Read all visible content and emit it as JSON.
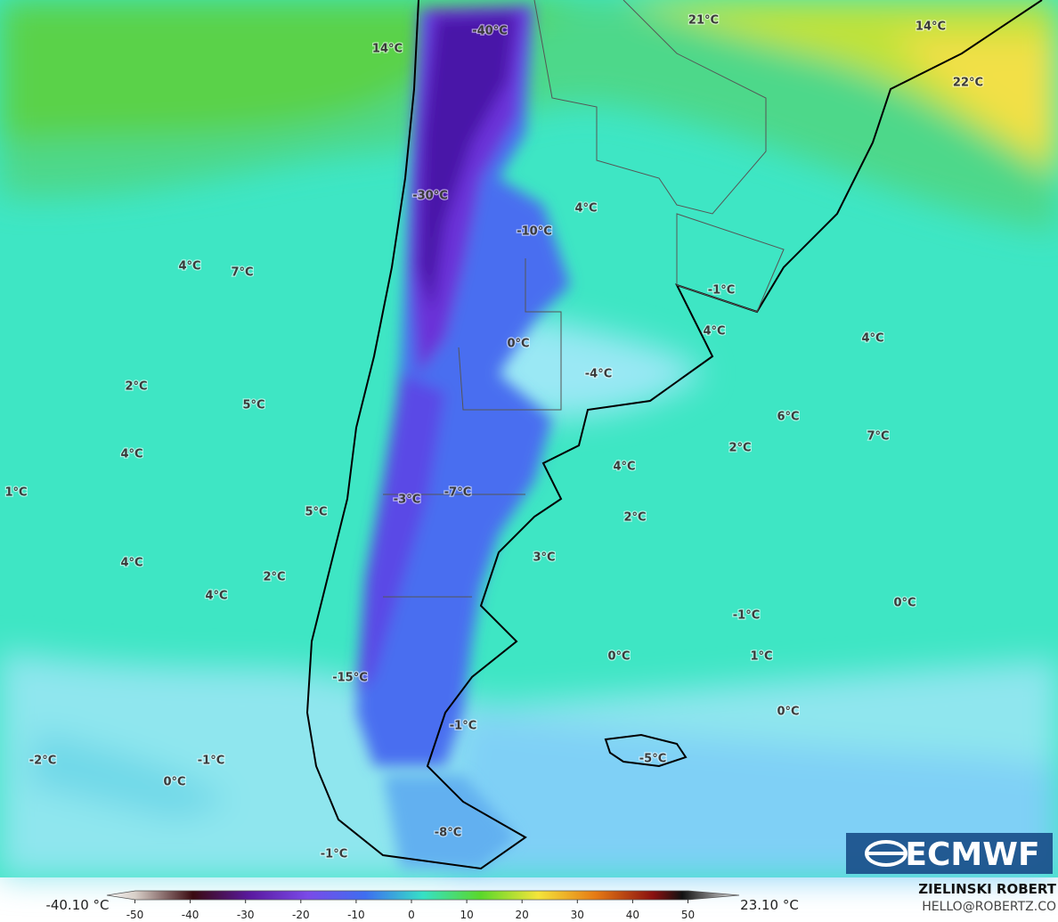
{
  "map": {
    "labels": [
      "14°C",
      "-40°C",
      "21°C",
      "14°C",
      "22°C",
      "-30°C",
      "-10°C",
      "4°C",
      "4°C",
      "7°C",
      "-1°C",
      "0°C",
      "4°C",
      "4°C",
      "-4°C",
      "2°C",
      "5°C",
      "6°C",
      "7°C",
      "4°C",
      "2°C",
      "4°C",
      "1°C",
      "-3°C",
      "-7°C",
      "5°C",
      "2°C",
      "3°C",
      "4°C",
      "2°C",
      "4°C",
      "0°C",
      "-1°C",
      "0°C",
      "1°C",
      "-15°C",
      "0°C",
      "-1°C",
      "-5°C",
      "-2°C",
      "-1°C",
      "0°C",
      "-8°C",
      "-1°C"
    ],
    "colorbar": {
      "min_label": "-40.10 °C",
      "max_label": "23.10 °C",
      "ticks": [
        -50,
        -40,
        -30,
        -20,
        -10,
        0,
        10,
        20,
        30,
        40,
        50
      ]
    }
  },
  "credit": {
    "name": "ZIELINSKI ROBERT",
    "email": "HELLO@ROBERTZ.CO"
  },
  "logo": "ECMWF"
}
